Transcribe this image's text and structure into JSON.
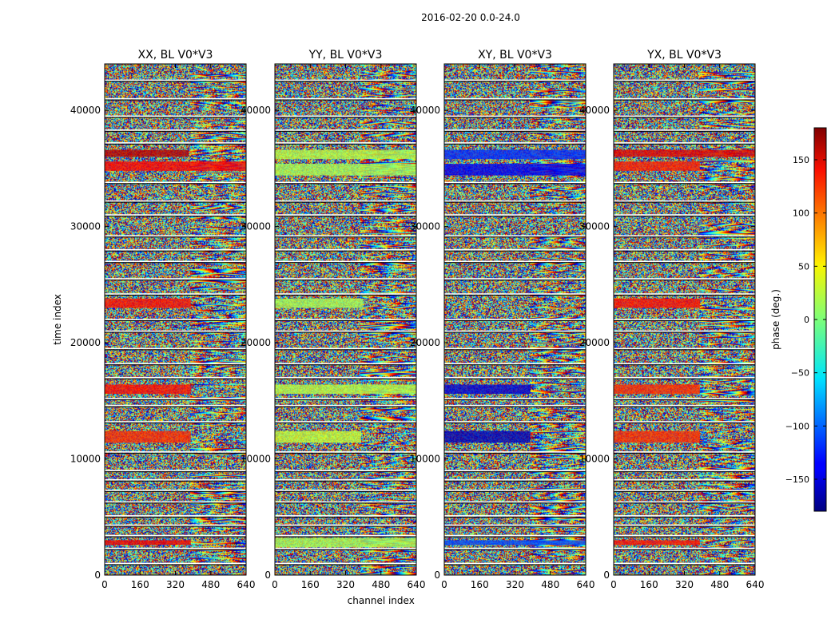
{
  "figure": {
    "suptitle": "2016-02-20 0.0-24.0"
  },
  "chart_data": [
    {
      "type": "heatmap",
      "title": "XX, BL V0*V3",
      "xlabel": "",
      "ylabel": "time index",
      "xlim": [
        0,
        640
      ],
      "ylim": [
        0,
        44000
      ],
      "xticks": [
        "0",
        "160",
        "320",
        "480",
        "640"
      ],
      "yticks": [
        "0",
        "10000",
        "20000",
        "30000",
        "40000"
      ],
      "xtick_values": [
        0,
        160,
        320,
        480,
        640
      ],
      "ytick_values": [
        0,
        10000,
        20000,
        30000,
        40000
      ],
      "high_phase_bands": [
        {
          "t_start": 36000,
          "t_end": 36600,
          "ch_end": 380,
          "phase": 160
        },
        {
          "t_start": 34800,
          "t_end": 35600,
          "ch_end": 640,
          "phase": 135
        },
        {
          "t_start": 23000,
          "t_end": 23800,
          "ch_end": 390,
          "phase": 130
        },
        {
          "t_start": 15600,
          "t_end": 16400,
          "ch_end": 390,
          "phase": 130
        },
        {
          "t_start": 11400,
          "t_end": 12400,
          "ch_end": 390,
          "phase": 120
        },
        {
          "t_start": 2600,
          "t_end": 3000,
          "ch_end": 390,
          "phase": 140
        }
      ]
    },
    {
      "type": "heatmap",
      "title": "YY, BL V0*V3",
      "xlabel": "channel index",
      "ylabel": "",
      "xlim": [
        0,
        640
      ],
      "ylim": [
        0,
        44000
      ],
      "xticks": [
        "0",
        "160",
        "320",
        "480",
        "640"
      ],
      "yticks": [
        "0",
        "10000",
        "20000",
        "30000",
        "40000"
      ],
      "xtick_values": [
        0,
        160,
        320,
        480,
        640
      ],
      "ytick_values": [
        0,
        10000,
        20000,
        30000,
        40000
      ],
      "high_phase_bands": [
        {
          "t_start": 35800,
          "t_end": 36600,
          "ch_end": 640,
          "phase": 20
        },
        {
          "t_start": 34400,
          "t_end": 35400,
          "ch_end": 640,
          "phase": 15
        },
        {
          "t_start": 23000,
          "t_end": 23800,
          "ch_end": 400,
          "phase": 15
        },
        {
          "t_start": 15600,
          "t_end": 16400,
          "ch_end": 640,
          "phase": 20
        },
        {
          "t_start": 11400,
          "t_end": 12400,
          "ch_end": 390,
          "phase": 25
        },
        {
          "t_start": 2400,
          "t_end": 3200,
          "ch_end": 640,
          "phase": 15
        }
      ]
    },
    {
      "type": "heatmap",
      "title": "XY, BL V0*V3",
      "xlabel": "",
      "ylabel": "",
      "xlim": [
        0,
        640
      ],
      "ylim": [
        0,
        44000
      ],
      "xticks": [
        "0",
        "160",
        "320",
        "480",
        "640"
      ],
      "yticks": [
        "0",
        "10000",
        "20000",
        "30000",
        "40000"
      ],
      "xtick_values": [
        0,
        160,
        320,
        480,
        640
      ],
      "ytick_values": [
        0,
        10000,
        20000,
        30000,
        40000
      ],
      "high_phase_bands": [
        {
          "t_start": 35800,
          "t_end": 36600,
          "ch_end": 640,
          "phase": -120
        },
        {
          "t_start": 34400,
          "t_end": 35400,
          "ch_end": 640,
          "phase": -140
        },
        {
          "t_start": 15600,
          "t_end": 16400,
          "ch_end": 390,
          "phase": -150
        },
        {
          "t_start": 11400,
          "t_end": 12400,
          "ch_end": 390,
          "phase": -160
        },
        {
          "t_start": 2600,
          "t_end": 3000,
          "ch_end": 640,
          "phase": -110
        }
      ]
    },
    {
      "type": "heatmap",
      "title": "YX, BL V0*V3",
      "xlabel": "",
      "ylabel": "",
      "xlim": [
        0,
        640
      ],
      "ylim": [
        0,
        44000
      ],
      "xticks": [
        "0",
        "160",
        "320",
        "480",
        "640"
      ],
      "yticks": [
        "0",
        "10000",
        "20000",
        "30000",
        "40000"
      ],
      "xtick_values": [
        0,
        160,
        320,
        480,
        640
      ],
      "ytick_values": [
        0,
        10000,
        20000,
        30000,
        40000
      ],
      "high_phase_bands": [
        {
          "t_start": 36000,
          "t_end": 36600,
          "ch_end": 640,
          "phase": 145
        },
        {
          "t_start": 34800,
          "t_end": 35600,
          "ch_end": 390,
          "phase": 125
        },
        {
          "t_start": 23000,
          "t_end": 23800,
          "ch_end": 390,
          "phase": 130
        },
        {
          "t_start": 15600,
          "t_end": 16400,
          "ch_end": 390,
          "phase": 120
        },
        {
          "t_start": 11400,
          "t_end": 12400,
          "ch_end": 390,
          "phase": 120
        },
        {
          "t_start": 2600,
          "t_end": 3000,
          "ch_end": 390,
          "phase": 130
        }
      ]
    }
  ],
  "colorbar": {
    "label": "phase (deg.)",
    "range": [
      -180,
      180
    ],
    "colormap": "jet",
    "ticks": [
      "150",
      "100",
      "50",
      "0",
      "−50",
      "−100",
      "−150"
    ],
    "tick_values": [
      150,
      100,
      50,
      0,
      -50,
      -100,
      -150
    ]
  },
  "shared_flag_rows": [
    1000,
    2300,
    3400,
    4300,
    5100,
    6300,
    7300,
    8200,
    9000,
    10600,
    13200,
    14600,
    15200,
    17000,
    18200,
    19500,
    21000,
    22000,
    24200,
    25500,
    27000,
    28000,
    29200,
    31000,
    32200,
    33800,
    37200,
    38300,
    39500,
    41000,
    42600
  ]
}
